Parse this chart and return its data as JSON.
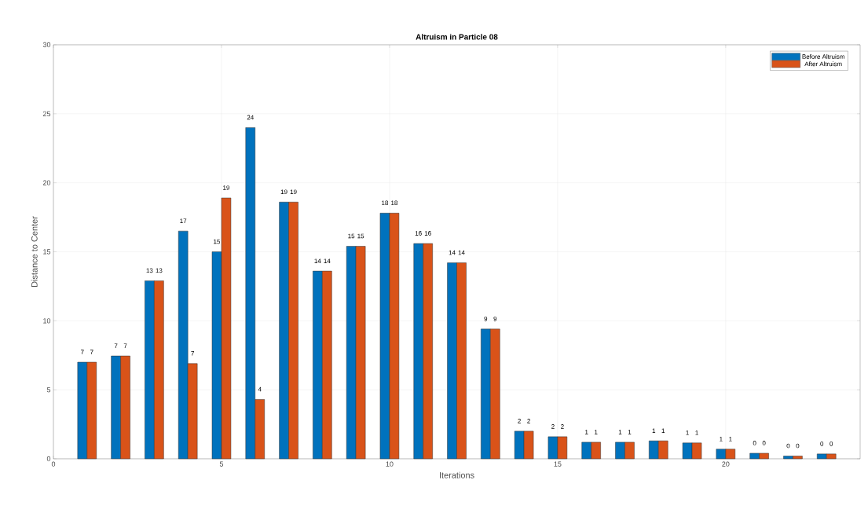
{
  "chart_data": {
    "type": "bar",
    "title": "Altruism in Particle 08",
    "xlabel": "Iterations",
    "ylabel": "Distance to Center",
    "x": [
      1,
      2,
      3,
      4,
      5,
      6,
      7,
      8,
      9,
      10,
      11,
      12,
      13,
      14,
      15,
      16,
      17,
      18,
      19,
      20,
      21,
      22,
      23
    ],
    "series": [
      {
        "name": "Before Altruism",
        "color": "#0072bd",
        "values": [
          7.0,
          7.45,
          12.9,
          16.5,
          15.0,
          24.0,
          18.6,
          13.6,
          15.4,
          17.8,
          15.6,
          14.2,
          9.4,
          2.0,
          1.6,
          1.2,
          1.2,
          1.3,
          1.15,
          0.7,
          0.4,
          0.2,
          0.35
        ],
        "value_labels": [
          "7",
          "7",
          "13",
          "17",
          "15",
          "24",
          "19",
          "14",
          "15",
          "18",
          "16",
          "14",
          "9",
          "2",
          "2",
          "1",
          "1",
          "1",
          "1",
          "1",
          "0",
          "0",
          "0"
        ]
      },
      {
        "name": "After Altruism",
        "color": "#d95319",
        "values": [
          7.0,
          7.45,
          12.9,
          6.9,
          18.9,
          4.3,
          18.6,
          13.6,
          15.4,
          17.8,
          15.6,
          14.2,
          9.4,
          2.0,
          1.6,
          1.2,
          1.2,
          1.3,
          1.15,
          0.7,
          0.4,
          0.2,
          0.35
        ],
        "value_labels": [
          "7",
          "7",
          "13",
          "7",
          "19",
          "4",
          "19",
          "14",
          "15",
          "18",
          "16",
          "14",
          "9",
          "2",
          "2",
          "1",
          "1",
          "1",
          "1",
          "1",
          "0",
          "0",
          "0"
        ]
      }
    ],
    "xlim": [
      0,
      24
    ],
    "xticks": [
      0,
      5,
      10,
      15,
      20
    ],
    "ylim": [
      0,
      30
    ],
    "yticks": [
      0,
      5,
      10,
      15,
      20,
      25,
      30
    ],
    "grid": true,
    "legend": "top right"
  }
}
